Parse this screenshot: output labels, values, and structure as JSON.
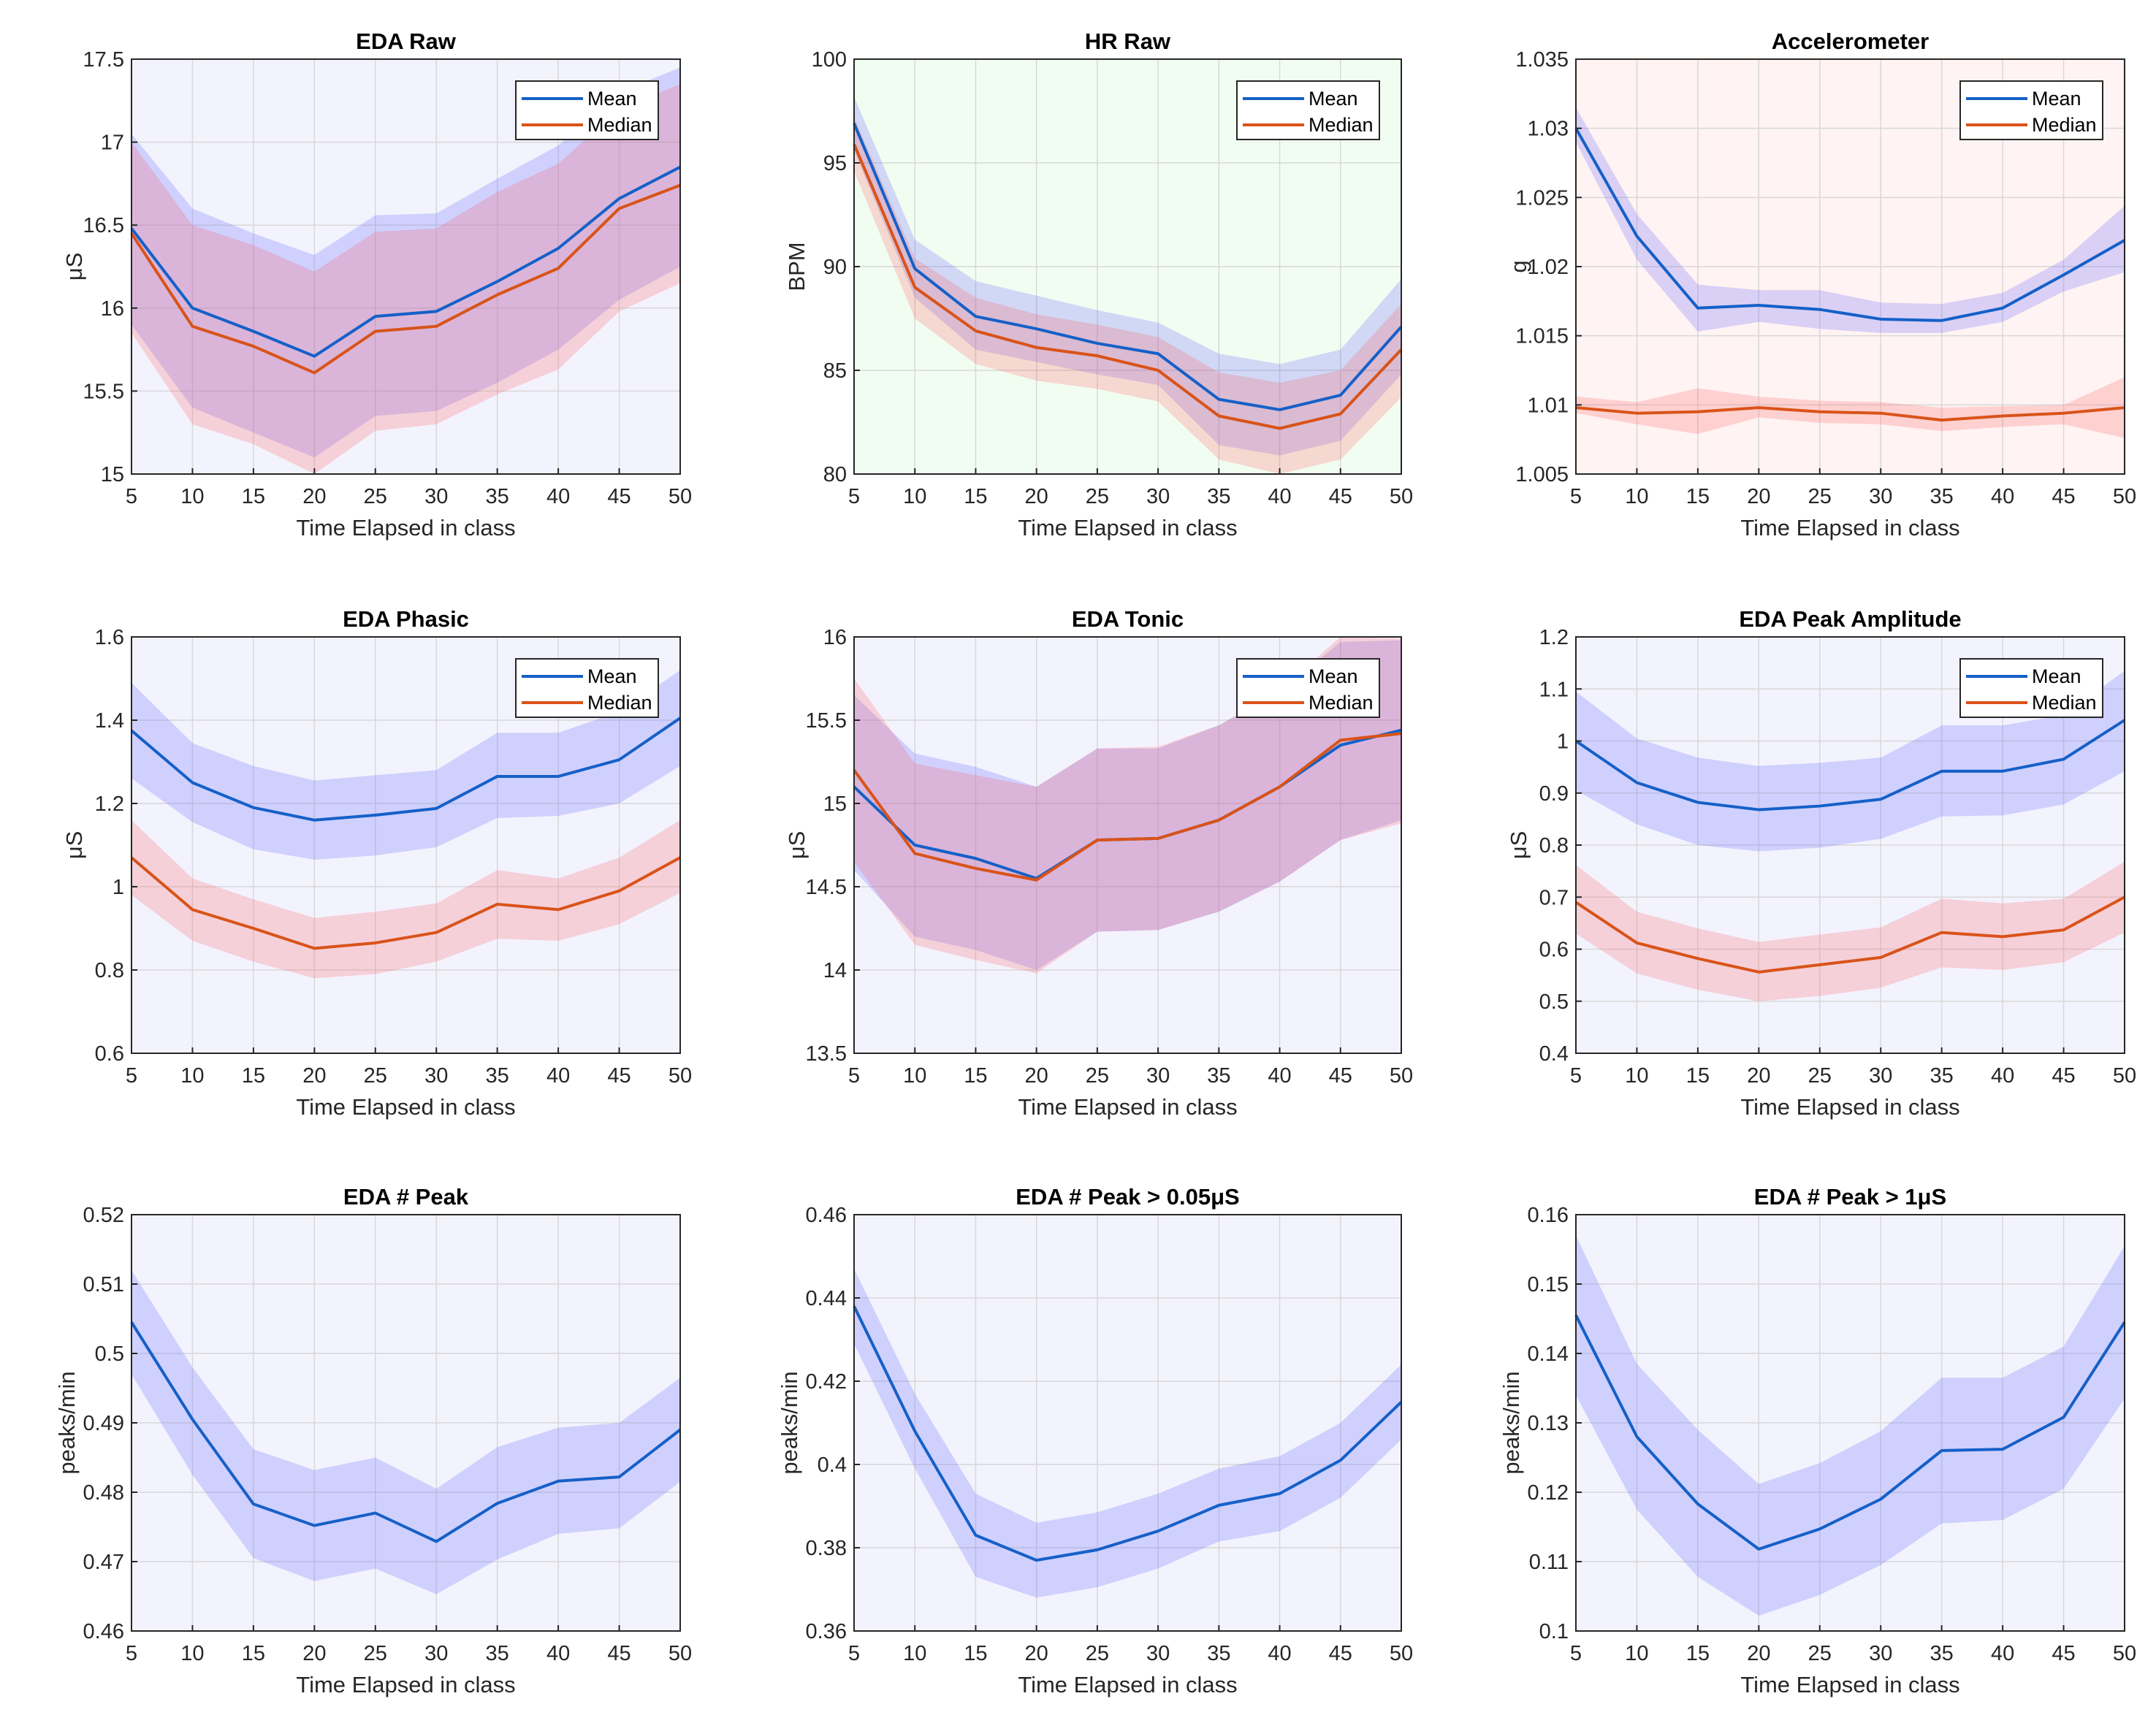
{
  "chart_data": [
    {
      "type": "line",
      "title": "EDA Raw",
      "xlabel": "Time Elapsed in class",
      "ylabel": "μS",
      "bg": "#f3f3fe",
      "x": [
        5,
        10,
        15,
        20,
        25,
        30,
        35,
        40,
        45,
        50
      ],
      "xlim": [
        5,
        50
      ],
      "ylim": [
        15,
        17.5
      ],
      "yticks": [
        "15",
        "15.5",
        "16",
        "16.5",
        "17",
        "17.5"
      ],
      "ytick_values": [
        15,
        15.5,
        16,
        16.5,
        17,
        17.5
      ],
      "legend": {
        "entries": [
          "Mean",
          "Median"
        ],
        "position": "top-right"
      },
      "grid": true,
      "series": [
        {
          "name": "Mean",
          "color": "#1560c8",
          "values": [
            16.48,
            16.0,
            15.86,
            15.71,
            15.95,
            15.98,
            16.16,
            16.36,
            16.66,
            16.85
          ],
          "upper": [
            17.05,
            16.6,
            16.45,
            16.32,
            16.56,
            16.57,
            16.78,
            16.98,
            17.3,
            17.45
          ],
          "lower": [
            15.9,
            15.4,
            15.25,
            15.1,
            15.35,
            15.38,
            15.55,
            15.75,
            16.05,
            16.25
          ]
        },
        {
          "name": "Median",
          "color": "#d95319",
          "values": [
            16.45,
            15.89,
            15.77,
            15.61,
            15.86,
            15.89,
            16.08,
            16.24,
            16.6,
            16.74
          ],
          "upper": [
            17.0,
            16.5,
            16.38,
            16.22,
            16.46,
            16.48,
            16.7,
            16.87,
            17.2,
            17.35
          ],
          "lower": [
            15.85,
            15.3,
            15.18,
            15.0,
            15.26,
            15.3,
            15.48,
            15.63,
            15.98,
            16.15
          ]
        }
      ]
    },
    {
      "type": "line",
      "title": "HR Raw",
      "xlabel": "Time Elapsed in class",
      "ylabel": "BPM",
      "bg": "#f2fdf2",
      "x": [
        5,
        10,
        15,
        20,
        25,
        30,
        35,
        40,
        45,
        50
      ],
      "xlim": [
        5,
        50
      ],
      "ylim": [
        80,
        100
      ],
      "yticks": [
        "80",
        "85",
        "90",
        "95",
        "100"
      ],
      "ytick_values": [
        80,
        85,
        90,
        95,
        100
      ],
      "legend": {
        "entries": [
          "Mean",
          "Median"
        ],
        "position": "top-right"
      },
      "grid": true,
      "series": [
        {
          "name": "Mean",
          "color": "#1560c8",
          "values": [
            96.9,
            89.9,
            87.6,
            87.0,
            86.3,
            85.8,
            83.6,
            83.1,
            83.8,
            87.1
          ],
          "upper": [
            98.2,
            91.3,
            89.3,
            88.6,
            87.9,
            87.3,
            85.8,
            85.3,
            86.0,
            89.4
          ],
          "lower": [
            95.6,
            88.5,
            86.0,
            85.4,
            84.8,
            84.3,
            81.4,
            80.9,
            81.6,
            84.8
          ]
        },
        {
          "name": "Median",
          "color": "#d95319",
          "values": [
            95.9,
            89.0,
            86.9,
            86.1,
            85.7,
            85.0,
            82.8,
            82.2,
            82.9,
            86.0
          ],
          "upper": [
            97.2,
            90.4,
            88.5,
            87.7,
            87.2,
            86.6,
            84.9,
            84.4,
            85.0,
            88.2
          ],
          "lower": [
            94.6,
            87.5,
            85.3,
            84.5,
            84.1,
            83.5,
            80.7,
            80.0,
            80.7,
            83.7
          ]
        }
      ]
    },
    {
      "type": "line",
      "title": "Accelerometer",
      "xlabel": "Time Elapsed in class",
      "ylabel": "g",
      "bg": "#fff3f3",
      "x": [
        5,
        10,
        15,
        20,
        25,
        30,
        35,
        40,
        45,
        50
      ],
      "xlim": [
        5,
        50
      ],
      "ylim": [
        1.005,
        1.035
      ],
      "yticks": [
        "1.005",
        "1.01",
        "1.015",
        "1.02",
        "1.025",
        "1.03",
        "1.035"
      ],
      "ytick_values": [
        1.005,
        1.01,
        1.015,
        1.02,
        1.025,
        1.03,
        1.035
      ],
      "legend": {
        "entries": [
          "Mean",
          "Median"
        ],
        "position": "top-right"
      },
      "grid": true,
      "series": [
        {
          "name": "Mean",
          "color": "#1560c8",
          "values": [
            1.03,
            1.0222,
            1.017,
            1.0172,
            1.0169,
            1.0162,
            1.0161,
            1.017,
            1.0194,
            1.0219
          ],
          "upper": [
            1.0315,
            1.0238,
            1.0187,
            1.0183,
            1.0183,
            1.0174,
            1.0173,
            1.0181,
            1.0205,
            1.0244
          ],
          "lower": [
            1.029,
            1.0205,
            1.0153,
            1.016,
            1.0155,
            1.0152,
            1.0152,
            1.016,
            1.0182,
            1.0196
          ]
        },
        {
          "name": "Median",
          "color": "#d95319",
          "values": [
            1.0098,
            1.0094,
            1.0095,
            1.0098,
            1.0095,
            1.0094,
            1.0089,
            1.0092,
            1.0094,
            1.0098
          ],
          "upper": [
            1.0106,
            1.0102,
            1.0112,
            1.0106,
            1.0103,
            1.0102,
            1.0098,
            1.0099,
            1.01,
            1.012
          ],
          "lower": [
            1.0094,
            1.0086,
            1.0079,
            1.0091,
            1.0087,
            1.0086,
            1.0081,
            1.0084,
            1.0086,
            1.0076
          ]
        }
      ]
    },
    {
      "type": "line",
      "title": "EDA Phasic",
      "xlabel": "Time Elapsed in class",
      "ylabel": "μS",
      "bg": "#f3f3fe",
      "x": [
        5,
        10,
        15,
        20,
        25,
        30,
        35,
        40,
        45,
        50
      ],
      "xlim": [
        5,
        50
      ],
      "ylim": [
        0.6,
        1.6
      ],
      "yticks": [
        "0.6",
        "0.8",
        "1",
        "1.2",
        "1.4",
        "1.6"
      ],
      "ytick_values": [
        0.6,
        0.8,
        1,
        1.2,
        1.4,
        1.6
      ],
      "legend": {
        "entries": [
          "Mean",
          "Median"
        ],
        "position": "top-right"
      },
      "grid": true,
      "series": [
        {
          "name": "Mean",
          "color": "#1560c8",
          "values": [
            1.375,
            1.25,
            1.19,
            1.16,
            1.172,
            1.188,
            1.265,
            1.265,
            1.305,
            1.405
          ],
          "upper": [
            1.49,
            1.345,
            1.29,
            1.255,
            1.268,
            1.28,
            1.37,
            1.37,
            1.42,
            1.52
          ],
          "lower": [
            1.26,
            1.155,
            1.09,
            1.065,
            1.075,
            1.095,
            1.165,
            1.17,
            1.2,
            1.29
          ]
        },
        {
          "name": "Median",
          "color": "#d95319",
          "values": [
            1.07,
            0.945,
            0.9,
            0.852,
            0.865,
            0.89,
            0.958,
            0.945,
            0.99,
            1.07
          ],
          "upper": [
            1.16,
            1.02,
            0.97,
            0.925,
            0.94,
            0.96,
            1.04,
            1.02,
            1.07,
            1.16
          ],
          "lower": [
            0.98,
            0.87,
            0.82,
            0.78,
            0.79,
            0.82,
            0.875,
            0.87,
            0.91,
            0.985
          ]
        }
      ]
    },
    {
      "type": "line",
      "title": "EDA Tonic",
      "xlabel": "Time Elapsed in class",
      "ylabel": "μS",
      "bg": "#f3f3fe",
      "x": [
        5,
        10,
        15,
        20,
        25,
        30,
        35,
        40,
        45,
        50
      ],
      "xlim": [
        5,
        50
      ],
      "ylim": [
        13.5,
        16
      ],
      "yticks": [
        "13.5",
        "14",
        "14.5",
        "15",
        "15.5",
        "16"
      ],
      "ytick_values": [
        13.5,
        14,
        14.5,
        15,
        15.5,
        16
      ],
      "legend": {
        "entries": [
          "Mean",
          "Median"
        ],
        "position": "top-right"
      },
      "grid": true,
      "series": [
        {
          "name": "Mean",
          "color": "#1560c8",
          "values": [
            15.1,
            14.75,
            14.67,
            14.55,
            14.78,
            14.79,
            14.9,
            15.1,
            15.35,
            15.44
          ],
          "upper": [
            15.65,
            15.3,
            15.22,
            15.1,
            15.33,
            15.33,
            15.47,
            15.67,
            15.97,
            15.98
          ],
          "lower": [
            14.6,
            14.2,
            14.12,
            14.0,
            14.23,
            14.24,
            14.35,
            14.53,
            14.78,
            14.9
          ]
        },
        {
          "name": "Median",
          "color": "#d95319",
          "values": [
            15.2,
            14.7,
            14.61,
            14.54,
            14.78,
            14.79,
            14.9,
            15.1,
            15.38,
            15.42
          ],
          "upper": [
            15.75,
            15.24,
            15.17,
            15.1,
            15.33,
            15.34,
            15.47,
            15.68,
            16.0,
            15.99
          ],
          "lower": [
            14.65,
            14.15,
            14.06,
            13.98,
            14.23,
            14.24,
            14.35,
            14.53,
            14.78,
            14.88
          ]
        }
      ]
    },
    {
      "type": "line",
      "title": "EDA Peak Amplitude",
      "xlabel": "Time Elapsed in class",
      "ylabel": "μS",
      "bg": "#f3f3fe",
      "x": [
        5,
        10,
        15,
        20,
        25,
        30,
        35,
        40,
        45,
        50
      ],
      "xlim": [
        5,
        50
      ],
      "ylim": [
        0.4,
        1.2
      ],
      "yticks": [
        "0.4",
        "0.5",
        "0.6",
        "0.7",
        "0.8",
        "0.9",
        "1",
        "1.1",
        "1.2"
      ],
      "ytick_values": [
        0.4,
        0.5,
        0.6,
        0.7,
        0.8,
        0.9,
        1,
        1.1,
        1.2
      ],
      "legend": {
        "entries": [
          "Mean",
          "Median"
        ],
        "position": "top-right"
      },
      "grid": true,
      "series": [
        {
          "name": "Mean",
          "color": "#1560c8",
          "values": [
            1.0,
            0.92,
            0.882,
            0.868,
            0.875,
            0.888,
            0.942,
            0.942,
            0.965,
            1.04
          ],
          "upper": [
            1.095,
            1.005,
            0.968,
            0.952,
            0.958,
            0.968,
            1.03,
            1.03,
            1.05,
            1.135
          ],
          "lower": [
            0.905,
            0.84,
            0.8,
            0.788,
            0.795,
            0.812,
            0.855,
            0.857,
            0.878,
            0.942
          ]
        },
        {
          "name": "Median",
          "color": "#d95319",
          "values": [
            0.69,
            0.612,
            0.582,
            0.556,
            0.57,
            0.584,
            0.632,
            0.624,
            0.637,
            0.7
          ],
          "upper": [
            0.762,
            0.672,
            0.64,
            0.614,
            0.628,
            0.642,
            0.697,
            0.688,
            0.697,
            0.768
          ],
          "lower": [
            0.63,
            0.553,
            0.522,
            0.5,
            0.51,
            0.526,
            0.565,
            0.56,
            0.575,
            0.632
          ]
        }
      ]
    },
    {
      "type": "line",
      "title": "EDA # Peak",
      "xlabel": "Time Elapsed in class",
      "ylabel": "peaks/min",
      "bg": "#f3f3fe",
      "x": [
        5,
        10,
        15,
        20,
        25,
        30,
        35,
        40,
        45,
        50
      ],
      "xlim": [
        5,
        50
      ],
      "ylim": [
        0.46,
        0.52
      ],
      "yticks": [
        "0.46",
        "0.47",
        "0.48",
        "0.49",
        "0.5",
        "0.51",
        "0.52"
      ],
      "ytick_values": [
        0.46,
        0.47,
        0.48,
        0.49,
        0.5,
        0.51,
        0.52
      ],
      "legend": null,
      "grid": true,
      "series": [
        {
          "name": "Mean",
          "color": "#1560c8",
          "values": [
            0.5045,
            0.4905,
            0.4783,
            0.4752,
            0.477,
            0.4729,
            0.4784,
            0.4816,
            0.4822,
            0.489
          ],
          "upper": [
            0.512,
            0.498,
            0.4862,
            0.4832,
            0.485,
            0.4805,
            0.4865,
            0.4893,
            0.49,
            0.4965
          ],
          "lower": [
            0.497,
            0.4825,
            0.4705,
            0.4672,
            0.469,
            0.4653,
            0.4703,
            0.474,
            0.4748,
            0.4815
          ]
        }
      ]
    },
    {
      "type": "line",
      "title": "EDA # Peak > 0.05μS",
      "xlabel": "Time Elapsed in class",
      "ylabel": "peaks/min",
      "bg": "#f3f3fe",
      "x": [
        5,
        10,
        15,
        20,
        25,
        30,
        35,
        40,
        45,
        50
      ],
      "xlim": [
        5,
        50
      ],
      "ylim": [
        0.36,
        0.46
      ],
      "yticks": [
        "0.36",
        "0.38",
        "0.4",
        "0.42",
        "0.44",
        "0.46"
      ],
      "ytick_values": [
        0.36,
        0.38,
        0.4,
        0.42,
        0.44,
        0.46
      ],
      "legend": null,
      "grid": true,
      "series": [
        {
          "name": "Mean",
          "color": "#1560c8",
          "values": [
            0.438,
            0.408,
            0.383,
            0.377,
            0.3795,
            0.384,
            0.3902,
            0.393,
            0.401,
            0.415
          ],
          "upper": [
            0.447,
            0.417,
            0.393,
            0.386,
            0.3885,
            0.393,
            0.399,
            0.402,
            0.41,
            0.424
          ],
          "lower": [
            0.429,
            0.399,
            0.373,
            0.368,
            0.3705,
            0.375,
            0.3815,
            0.384,
            0.392,
            0.406
          ]
        }
      ]
    },
    {
      "type": "line",
      "title": "EDA # Peak > 1μS",
      "xlabel": "Time Elapsed in class",
      "ylabel": "peaks/min",
      "bg": "#f3f3fe",
      "x": [
        5,
        10,
        15,
        20,
        25,
        30,
        35,
        40,
        45,
        50
      ],
      "xlim": [
        5,
        50
      ],
      "ylim": [
        0.1,
        0.16
      ],
      "yticks": [
        "0.1",
        "0.11",
        "0.12",
        "0.13",
        "0.14",
        "0.15",
        "0.16"
      ],
      "ytick_values": [
        0.1,
        0.11,
        0.12,
        0.13,
        0.14,
        0.15,
        0.16
      ],
      "legend": null,
      "grid": true,
      "series": [
        {
          "name": "Mean",
          "color": "#1560c8",
          "values": [
            0.1455,
            0.128,
            0.1183,
            0.1118,
            0.1147,
            0.119,
            0.126,
            0.1262,
            0.1308,
            0.1445
          ],
          "upper": [
            0.157,
            0.1385,
            0.129,
            0.1212,
            0.1242,
            0.1288,
            0.1365,
            0.1365,
            0.141,
            0.1555
          ],
          "lower": [
            0.134,
            0.1175,
            0.1078,
            0.1022,
            0.1052,
            0.1095,
            0.1155,
            0.116,
            0.1205,
            0.1335
          ]
        }
      ]
    }
  ],
  "colors": {
    "band_mean": "#5555ff",
    "band_median": "#ff5555"
  }
}
